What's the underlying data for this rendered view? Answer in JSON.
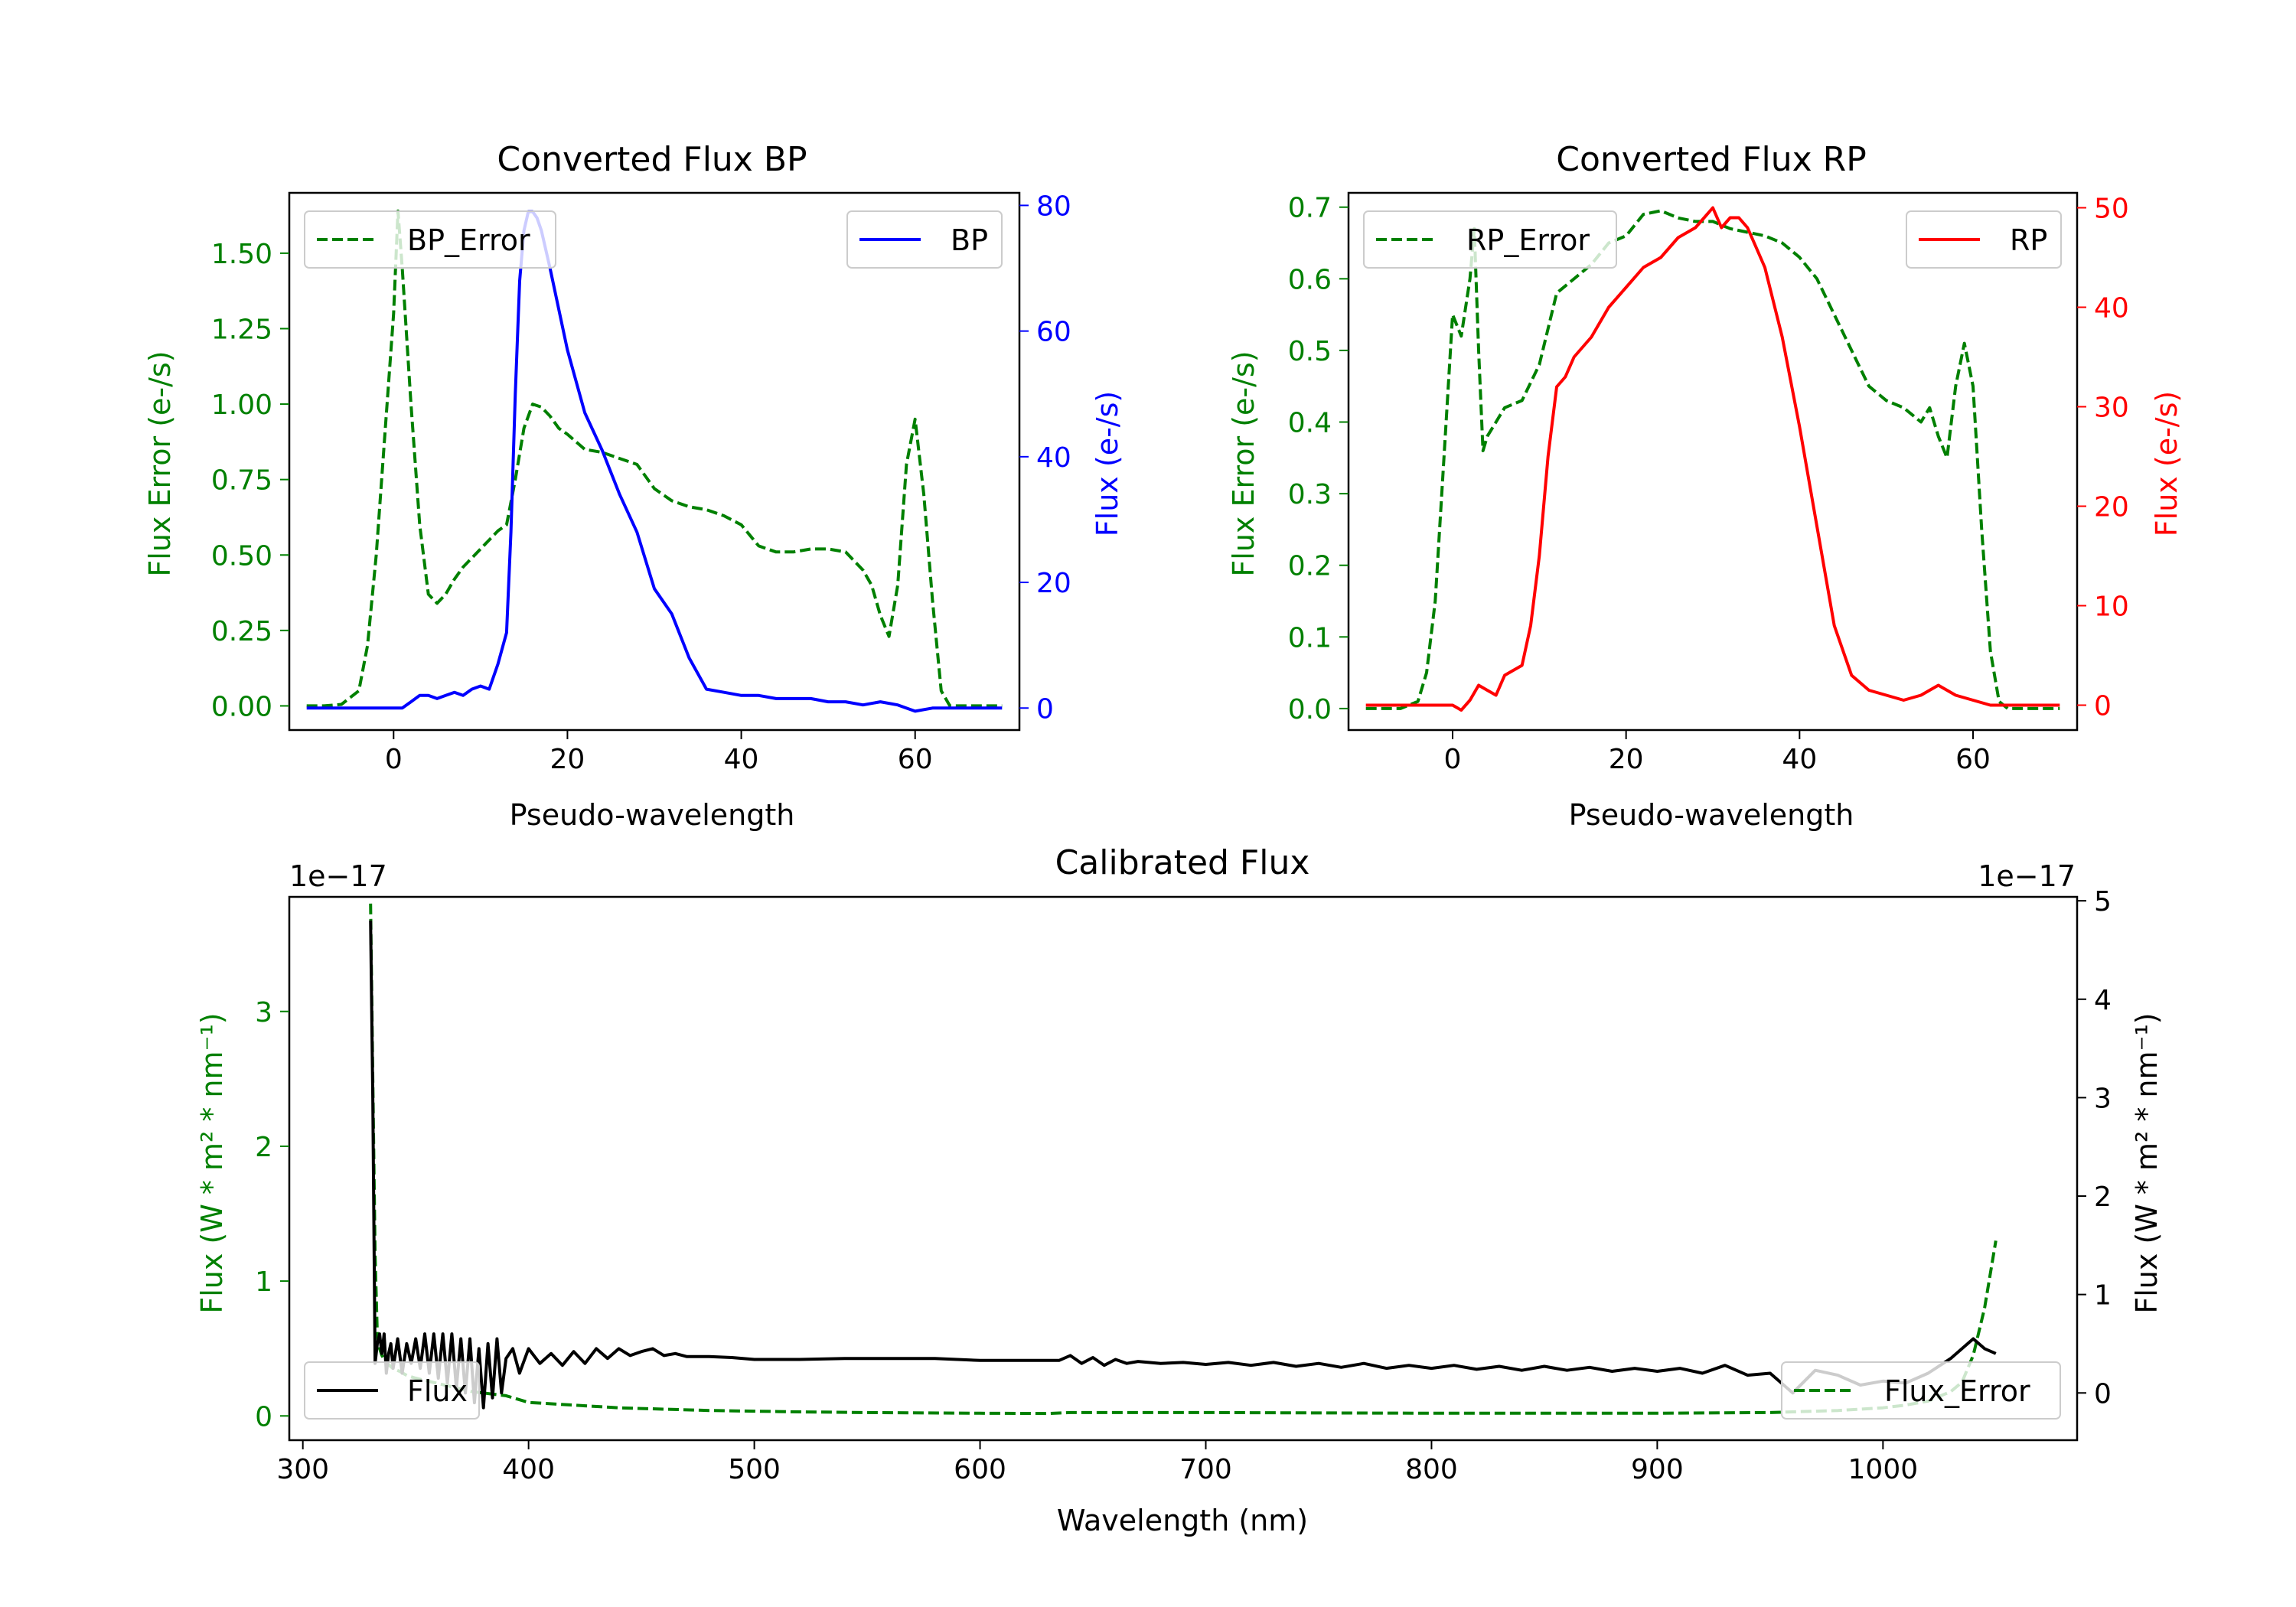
{
  "chart_data": [
    {
      "type": "line",
      "title": "Converted Flux BP",
      "xlabel": "Pseudo-wavelength",
      "ylabel_left": "Flux Error (e-/s)",
      "ylabel_right": "Flux (e-/s)",
      "xlim": [
        -12,
        72
      ],
      "ylim_left": [
        -0.08,
        1.7
      ],
      "ylim_right": [
        -3.5,
        82
      ],
      "xticks": [
        0,
        20,
        40,
        60
      ],
      "yticks_left": [
        "0.00",
        "0.25",
        "0.50",
        "0.75",
        "1.00",
        "1.25",
        "1.50"
      ],
      "yticks_right": [
        "0",
        "20",
        "40",
        "60",
        "80"
      ],
      "colors": {
        "error": "#008000",
        "flux": "#0000ff"
      },
      "legend_left": {
        "label": "BP_Error",
        "position": "upper left"
      },
      "legend_right": {
        "label": "BP",
        "position": "upper right"
      },
      "series": [
        {
          "name": "BP_Error",
          "axis": "left",
          "style": "dashed",
          "x": [
            -10,
            -8,
            -6,
            -4,
            -3,
            -2,
            -1,
            0,
            0.5,
            1,
            2,
            3,
            4,
            5,
            6,
            7,
            8,
            10,
            12,
            13,
            14,
            15,
            16,
            17,
            18,
            19,
            20,
            22,
            24,
            26,
            28,
            30,
            32,
            34,
            36,
            38,
            40,
            42,
            44,
            46,
            48,
            50,
            52,
            54,
            55,
            56,
            57,
            58,
            59,
            60,
            61,
            62,
            63,
            64,
            66,
            68,
            70
          ],
          "y": [
            0,
            0,
            0.005,
            0.05,
            0.2,
            0.5,
            0.9,
            1.3,
            1.64,
            1.45,
            1.0,
            0.6,
            0.37,
            0.34,
            0.37,
            0.42,
            0.46,
            0.52,
            0.58,
            0.6,
            0.75,
            0.92,
            1.0,
            0.99,
            0.96,
            0.92,
            0.9,
            0.85,
            0.84,
            0.82,
            0.8,
            0.72,
            0.68,
            0.66,
            0.65,
            0.63,
            0.6,
            0.53,
            0.51,
            0.51,
            0.52,
            0.52,
            0.51,
            0.45,
            0.4,
            0.3,
            0.23,
            0.4,
            0.8,
            0.95,
            0.7,
            0.35,
            0.05,
            0,
            0,
            0,
            0
          ]
        },
        {
          "name": "BP",
          "axis": "right",
          "style": "solid",
          "x": [
            -10,
            -6,
            -4,
            -2,
            0,
            1,
            2,
            3,
            4,
            5,
            6,
            7,
            8,
            9,
            10,
            11,
            12,
            13,
            13.5,
            14,
            14.5,
            15,
            15.5,
            16,
            16.5,
            17,
            18,
            20,
            22,
            24,
            26,
            28,
            30,
            32,
            34,
            36,
            38,
            40,
            42,
            44,
            46,
            48,
            50,
            52,
            54,
            56,
            58,
            60,
            62,
            64,
            66,
            68,
            70
          ],
          "y": [
            0,
            0,
            0,
            0,
            0,
            0,
            1,
            2,
            2,
            1.5,
            2,
            2.5,
            2,
            3,
            3.5,
            3,
            7,
            12,
            28,
            50,
            68,
            76,
            79,
            79,
            78,
            76,
            70,
            57,
            47,
            41,
            34,
            28,
            19,
            15,
            8,
            3,
            2.5,
            2,
            2,
            1.5,
            1.5,
            1.5,
            1,
            1,
            0.5,
            1,
            0.5,
            -0.5,
            0,
            0,
            0,
            0,
            0
          ]
        }
      ]
    },
    {
      "type": "line",
      "title": "Converted Flux RP",
      "xlabel": "Pseudo-wavelength",
      "ylabel_left": "Flux Error (e-/s)",
      "ylabel_right": "Flux (e-/s)",
      "xlim": [
        -12,
        72
      ],
      "ylim_left": [
        -0.03,
        0.72
      ],
      "ylim_right": [
        -2.5,
        51.5
      ],
      "xticks": [
        0,
        20,
        40,
        60
      ],
      "yticks_left": [
        "0.0",
        "0.1",
        "0.2",
        "0.3",
        "0.4",
        "0.5",
        "0.6",
        "0.7"
      ],
      "yticks_right": [
        "0",
        "10",
        "20",
        "30",
        "40",
        "50"
      ],
      "colors": {
        "error": "#008000",
        "flux": "#ff0000"
      },
      "legend_left": {
        "label": "RP_Error",
        "position": "upper left"
      },
      "legend_right": {
        "label": "RP",
        "position": "upper right"
      },
      "series": [
        {
          "name": "RP_Error",
          "axis": "left",
          "style": "dashed",
          "x": [
            -10,
            -6,
            -4,
            -3,
            -2,
            -1,
            0,
            1,
            2,
            2.5,
            3,
            3.5,
            4,
            5,
            6,
            8,
            10,
            12,
            14,
            16,
            18,
            20,
            22,
            24,
            26,
            28,
            30,
            32,
            34,
            36,
            38,
            40,
            42,
            44,
            46,
            48,
            50,
            52,
            54,
            55,
            56,
            57,
            58,
            59,
            60,
            61,
            62,
            63,
            64,
            66,
            68,
            70
          ],
          "y": [
            0,
            0,
            0.01,
            0.05,
            0.15,
            0.35,
            0.55,
            0.52,
            0.6,
            0.67,
            0.5,
            0.36,
            0.38,
            0.4,
            0.42,
            0.43,
            0.48,
            0.58,
            0.6,
            0.62,
            0.65,
            0.66,
            0.69,
            0.695,
            0.685,
            0.68,
            0.68,
            0.67,
            0.665,
            0.66,
            0.65,
            0.63,
            0.6,
            0.55,
            0.5,
            0.45,
            0.43,
            0.42,
            0.4,
            0.42,
            0.38,
            0.35,
            0.45,
            0.51,
            0.45,
            0.25,
            0.08,
            0.01,
            0,
            0,
            0,
            0
          ]
        },
        {
          "name": "RP",
          "axis": "right",
          "style": "solid",
          "x": [
            -10,
            -6,
            -4,
            -2,
            0,
            1,
            2,
            3,
            4,
            5,
            6,
            7,
            8,
            9,
            10,
            11,
            12,
            13,
            14,
            16,
            18,
            20,
            22,
            24,
            26,
            28,
            29,
            30,
            31,
            32,
            33,
            34,
            35,
            36,
            38,
            40,
            42,
            44,
            46,
            48,
            50,
            52,
            54,
            55,
            56,
            57,
            58,
            60,
            62,
            64,
            66,
            68,
            70
          ],
          "y": [
            0,
            0,
            0,
            0,
            0,
            -0.5,
            0.5,
            2,
            1.5,
            1,
            3,
            3.5,
            4,
            8,
            15,
            25,
            32,
            33,
            35,
            37,
            40,
            42,
            44,
            45,
            47,
            48,
            49,
            50,
            48,
            49,
            49,
            48,
            46,
            44,
            37,
            28,
            18,
            8,
            3,
            1.5,
            1,
            0.5,
            1,
            1.5,
            2,
            1.5,
            1,
            0.5,
            0,
            0,
            0,
            0,
            0
          ]
        }
      ]
    },
    {
      "type": "line",
      "title": "Calibrated Flux",
      "xlabel": "Wavelength (nm)",
      "ylabel_left": "Flux (W * m² * nm⁻¹)",
      "ylabel_right": "Flux (W * m² * nm⁻¹)",
      "offset_left": "1e−17",
      "offset_right": "1e−17",
      "xlim": [
        294,
        1086
      ],
      "ylim_left": [
        -0.18,
        3.85
      ],
      "ylim_right": [
        -0.48,
        5.04
      ],
      "xticks": [
        300,
        400,
        500,
        600,
        700,
        800,
        900,
        1000
      ],
      "yticks_left": [
        "0",
        "1",
        "2",
        "3"
      ],
      "yticks_right": [
        "0",
        "1",
        "2",
        "3",
        "4",
        "5"
      ],
      "colors": {
        "flux": "#000000",
        "error": "#008000"
      },
      "legend_left": {
        "label": "Flux",
        "position": "lower left"
      },
      "legend_right": {
        "label": "Flux_Error",
        "position": "lower right"
      },
      "series": [
        {
          "name": "Flux",
          "axis": "right",
          "style": "solid",
          "x": [
            330,
            331,
            332,
            333,
            334,
            335,
            336,
            337,
            338,
            339,
            340,
            342,
            344,
            346,
            348,
            350,
            352,
            354,
            356,
            358,
            360,
            362,
            364,
            366,
            368,
            370,
            372,
            374,
            376,
            378,
            380,
            382,
            384,
            386,
            388,
            390,
            393,
            396,
            400,
            405,
            410,
            415,
            420,
            425,
            430,
            435,
            440,
            445,
            450,
            455,
            460,
            465,
            470,
            480,
            490,
            500,
            520,
            540,
            560,
            580,
            600,
            620,
            635,
            640,
            645,
            650,
            655,
            660,
            665,
            670,
            680,
            690,
            700,
            710,
            720,
            730,
            740,
            750,
            760,
            770,
            780,
            790,
            800,
            810,
            820,
            830,
            840,
            850,
            860,
            870,
            880,
            890,
            900,
            910,
            920,
            930,
            940,
            950,
            960,
            970,
            980,
            990,
            1000,
            1010,
            1020,
            1030,
            1040,
            1045,
            1050
          ],
          "y": [
            4.8,
            3.0,
            0.3,
            0.5,
            0.6,
            0.4,
            0.6,
            0.2,
            0.4,
            0.5,
            0.25,
            0.55,
            0.2,
            0.5,
            0.3,
            0.55,
            0.25,
            0.6,
            0.2,
            0.6,
            0.15,
            0.6,
            0.1,
            0.6,
            0.05,
            0.55,
            0.0,
            0.55,
            -0.1,
            0.45,
            -0.15,
            0.5,
            -0.05,
            0.55,
            0.0,
            0.35,
            0.45,
            0.2,
            0.45,
            0.3,
            0.4,
            0.28,
            0.42,
            0.3,
            0.45,
            0.35,
            0.45,
            0.38,
            0.42,
            0.45,
            0.38,
            0.4,
            0.37,
            0.37,
            0.36,
            0.34,
            0.34,
            0.35,
            0.35,
            0.35,
            0.33,
            0.33,
            0.33,
            0.38,
            0.3,
            0.36,
            0.28,
            0.34,
            0.3,
            0.32,
            0.3,
            0.31,
            0.29,
            0.31,
            0.28,
            0.31,
            0.27,
            0.3,
            0.26,
            0.3,
            0.25,
            0.28,
            0.25,
            0.28,
            0.24,
            0.27,
            0.23,
            0.27,
            0.23,
            0.26,
            0.22,
            0.25,
            0.22,
            0.25,
            0.2,
            0.28,
            0.18,
            0.2,
            0.0,
            0.23,
            0.18,
            0.08,
            0.12,
            0.1,
            0.2,
            0.35,
            0.55,
            0.45,
            0.4
          ]
        },
        {
          "name": "Flux_Error",
          "axis": "left",
          "style": "dashed",
          "x": [
            330,
            331,
            332,
            333,
            334,
            335,
            336,
            338,
            340,
            343,
            346,
            350,
            355,
            360,
            365,
            370,
            375,
            380,
            385,
            390,
            400,
            420,
            440,
            460,
            480,
            500,
            520,
            550,
            600,
            630,
            640,
            700,
            800,
            900,
            950,
            980,
            1000,
            1010,
            1020,
            1030,
            1035,
            1040,
            1045,
            1050
          ],
          "y": [
            3.8,
            2.5,
            1.2,
            0.6,
            0.5,
            0.45,
            0.42,
            0.38,
            0.35,
            0.33,
            0.3,
            0.28,
            0.26,
            0.24,
            0.22,
            0.2,
            0.18,
            0.17,
            0.16,
            0.15,
            0.1,
            0.08,
            0.06,
            0.05,
            0.04,
            0.035,
            0.03,
            0.025,
            0.02,
            0.018,
            0.025,
            0.025,
            0.02,
            0.02,
            0.025,
            0.04,
            0.06,
            0.08,
            0.11,
            0.18,
            0.25,
            0.45,
            0.8,
            1.3
          ]
        }
      ]
    }
  ]
}
